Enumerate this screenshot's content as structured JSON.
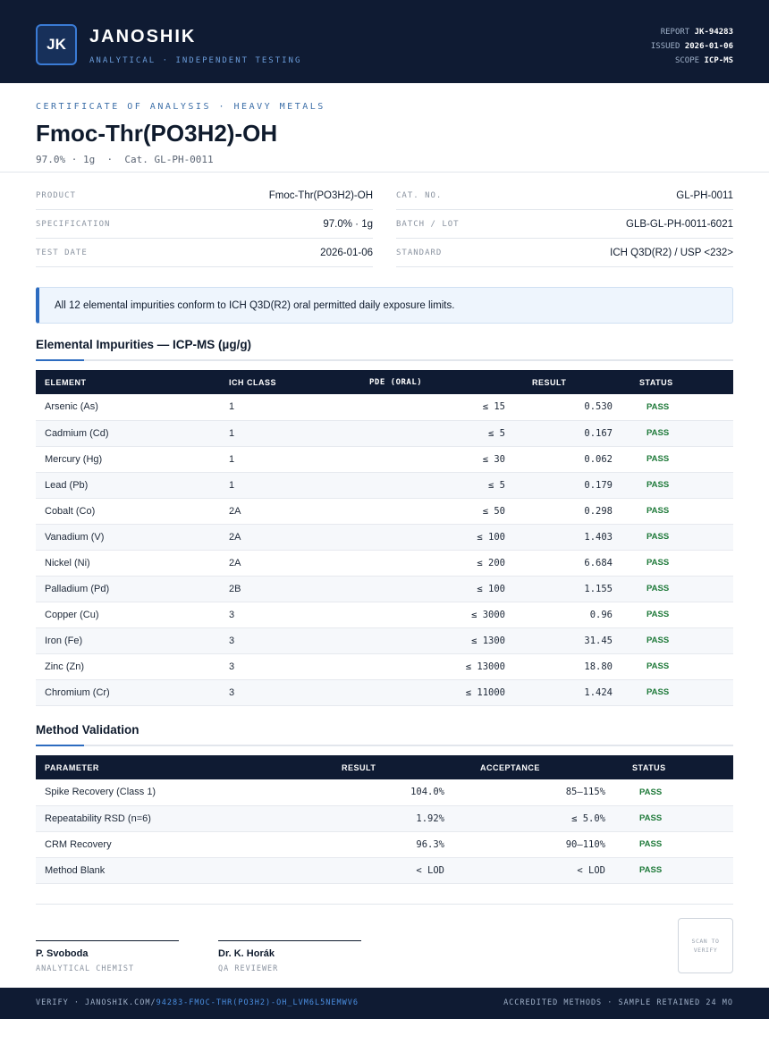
{
  "header": {
    "logo_initials": "JK",
    "brand_name": "JANOSHIK",
    "brand_tagline": "ANALYTICAL · INDEPENDENT TESTING",
    "report_label": "REPORT",
    "report_value": "JK-94283",
    "issued_label": "ISSUED",
    "issued_value": "2026-01-06",
    "scope_label": "SCOPE",
    "scope_value": "ICP-MS"
  },
  "title_block": {
    "doc_type": "CERTIFICATE OF ANALYSIS · HEAVY METALS",
    "title": "Fmoc-Thr(PO3H2)-OH",
    "subtitle": "97.0% · 1g  ·  Cat. GL-PH-0011"
  },
  "info_left": [
    {
      "label": "PRODUCT",
      "value": "Fmoc-Thr(PO3H2)-OH"
    },
    {
      "label": "SPECIFICATION",
      "value": "97.0% · 1g"
    },
    {
      "label": "TEST DATE",
      "value": "2026-01-06"
    }
  ],
  "info_right": [
    {
      "label": "CAT. NO.",
      "value": "GL-PH-0011"
    },
    {
      "label": "BATCH / LOT",
      "value": "GLB-GL-PH-0011-6021"
    },
    {
      "label": "STANDARD",
      "value": "ICH Q3D(R2) / USP <232>"
    }
  ],
  "callout": "All 12 elemental impurities conform to ICH Q3D(R2) oral permitted daily exposure limits.",
  "impurities": {
    "title": "Elemental Impurities — ICP-MS (µg/g)",
    "headers": [
      "ELEMENT",
      "ICH CLASS",
      "PDE (ORAL)",
      "RESULT",
      "STATUS"
    ],
    "rows": [
      [
        "Arsenic (As)",
        "1",
        "≤ 15",
        "0.530",
        "PASS"
      ],
      [
        "Cadmium (Cd)",
        "1",
        "≤ 5",
        "0.167",
        "PASS"
      ],
      [
        "Mercury (Hg)",
        "1",
        "≤ 30",
        "0.062",
        "PASS"
      ],
      [
        "Lead (Pb)",
        "1",
        "≤ 5",
        "0.179",
        "PASS"
      ],
      [
        "Cobalt (Co)",
        "2A",
        "≤ 50",
        "0.298",
        "PASS"
      ],
      [
        "Vanadium (V)",
        "2A",
        "≤ 100",
        "1.403",
        "PASS"
      ],
      [
        "Nickel (Ni)",
        "2A",
        "≤ 200",
        "6.684",
        "PASS"
      ],
      [
        "Palladium (Pd)",
        "2B",
        "≤ 100",
        "1.155",
        "PASS"
      ],
      [
        "Copper (Cu)",
        "3",
        "≤ 3000",
        "0.96",
        "PASS"
      ],
      [
        "Iron (Fe)",
        "3",
        "≤ 1300",
        "31.45",
        "PASS"
      ],
      [
        "Zinc (Zn)",
        "3",
        "≤ 13000",
        "18.80",
        "PASS"
      ],
      [
        "Chromium (Cr)",
        "3",
        "≤ 11000",
        "1.424",
        "PASS"
      ]
    ]
  },
  "validation": {
    "title": "Method Validation",
    "headers": [
      "PARAMETER",
      "RESULT",
      "ACCEPTANCE",
      "STATUS"
    ],
    "rows": [
      [
        "Spike Recovery (Class 1)",
        "104.0%",
        "85–115%",
        "PASS"
      ],
      [
        "Repeatability RSD (n=6)",
        "1.92%",
        "≤ 5.0%",
        "PASS"
      ],
      [
        "CRM Recovery",
        "96.3%",
        "90–110%",
        "PASS"
      ],
      [
        "Method Blank",
        "< LOD",
        "< LOD",
        "PASS"
      ]
    ]
  },
  "signatures": [
    {
      "name": "P. Svoboda",
      "role": "ANALYTICAL CHEMIST"
    },
    {
      "name": "Dr. K. Horák",
      "role": "QA REVIEWER"
    }
  ],
  "scan_box": "SCAN TO VERIFY",
  "footer": {
    "verify_prefix": "VERIFY · JANOSHIK.COM/",
    "verify_link": "94283-FMOC-THR(PO3H2)-OH_LVM6L5NEMWV6",
    "right_text": "ACCREDITED METHODS · SAMPLE RETAINED 24 MO"
  },
  "colors": {
    "navy": "#0f1b33",
    "accent_blue": "#2d6cc0",
    "pass_green": "#1f7a3a"
  }
}
